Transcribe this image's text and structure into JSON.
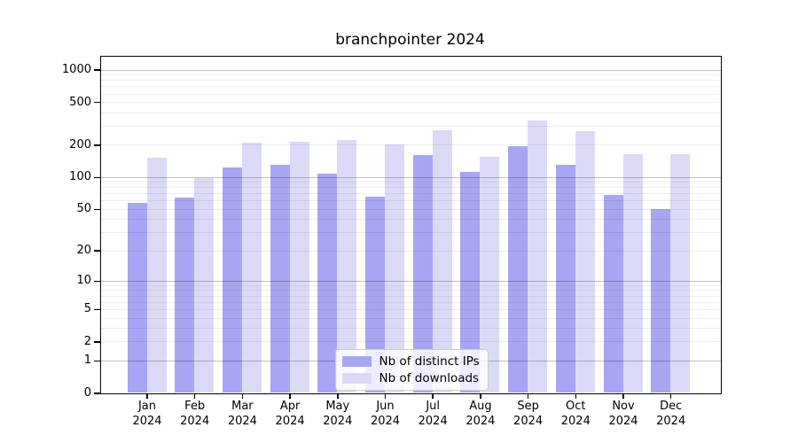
{
  "chart_data": {
    "type": "bar",
    "title": "branchpointer 2024",
    "x_categories": [
      "Jan",
      "Feb",
      "Mar",
      "Apr",
      "May",
      "Jun",
      "Jul",
      "Aug",
      "Sep",
      "Oct",
      "Nov",
      "Dec"
    ],
    "x_year_label": "2024",
    "y_scale": "log10(1+v)",
    "y_ticks": [
      0,
      1,
      2,
      5,
      10,
      20,
      50,
      100,
      200,
      500,
      1000
    ],
    "ylim": [
      0,
      1370
    ],
    "grid": "horizontal major at powers of 10 plus faint minors at 2-9 multiples, drawn over bars",
    "legend_position": "inside-bottom-center",
    "series": [
      {
        "key": "distinct-ips",
        "name": "Nb of distinct IPs",
        "color": "#a6a6f2",
        "values": [
          57,
          64,
          122,
          130,
          108,
          65,
          160,
          112,
          195,
          130,
          68,
          50
        ]
      },
      {
        "key": "downloads",
        "name": "Nb of downloads",
        "color": "#dadaf6",
        "values": [
          152,
          97,
          210,
          215,
          220,
          200,
          275,
          154,
          340,
          268,
          164,
          165
        ]
      }
    ]
  },
  "colors": {
    "background": "#ffffff",
    "axis": "#000000",
    "grid_major": "rgba(0,0,0,0.25)",
    "grid_minor": "rgba(0,0,0,0.07)",
    "legend_bg": "rgba(255,255,255,0.8)",
    "legend_border": "#cccccc",
    "text": "#000000"
  }
}
